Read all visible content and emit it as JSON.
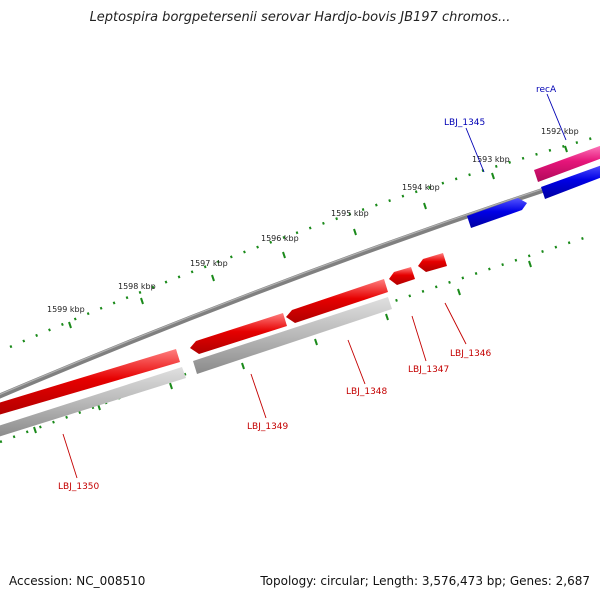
{
  "title": "Leptospira borgpetersenii serovar Hardjo-bovis JB197 chromos...",
  "footer": {
    "accession": "Accession: NC_008510",
    "summary": "Topology: circular; Length: 3,576,473 bp; Genes: 2,687"
  },
  "ticks": [
    "1599 kbp",
    "1598 kbp",
    "1597 kbp",
    "1596 kbp",
    "1595 kbp",
    "1594 kbp",
    "1593 kbp",
    "1592 kbp"
  ],
  "genes": {
    "forward": [
      "recA",
      "LBJ_1345"
    ],
    "reverse": [
      "LBJ_1346",
      "LBJ_1347",
      "LBJ_1348",
      "LBJ_1349",
      "LBJ_1350"
    ]
  },
  "colors": {
    "backbone": "#808080",
    "tick": "#1a8a1a",
    "reverse_gene": "#e60000",
    "reverse_shadow": "#a8a8a8",
    "forward_gene": "#0000e6",
    "recA_gene": "#e6157a",
    "forward_label": "#0000b4",
    "reverse_label": "#c40000"
  }
}
